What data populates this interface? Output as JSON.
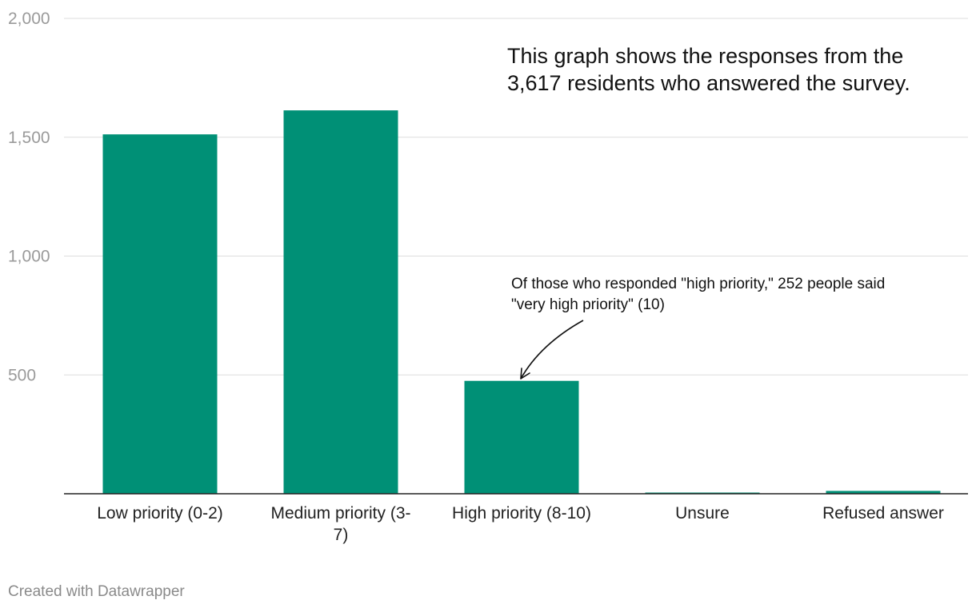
{
  "chart_data": {
    "type": "bar",
    "categories": [
      "Low priority (0-2)",
      "Medium priority (3-7)",
      "High priority (8-10)",
      "Unsure",
      "Refused answer"
    ],
    "category_label_lines": [
      [
        "Low priority (0-2)"
      ],
      [
        "Medium priority (3-",
        "7)"
      ],
      [
        "High priority (8-10)"
      ],
      [
        "Unsure"
      ],
      [
        "Refused answer"
      ]
    ],
    "values": [
      1512,
      1613,
      475,
      5,
      12
    ],
    "ylim": [
      0,
      2000
    ],
    "yticks": [
      500,
      1000,
      1500,
      2000
    ],
    "ytick_labels": [
      "500",
      "1,000",
      "1,500",
      "2,000"
    ],
    "grid": true,
    "bar_color": "#009076",
    "annotations": [
      {
        "target_category": "High priority (8-10)",
        "lines": [
          "Of those who responded \"high priority,\" 252 people said",
          "\"very high priority\" (10)"
        ]
      }
    ],
    "note_lines": [
      "This graph shows the responses from the",
      "3,617 residents who answered the survey."
    ]
  },
  "footer": "Created with Datawrapper"
}
